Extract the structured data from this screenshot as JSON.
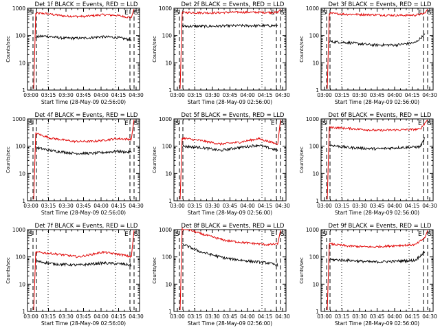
{
  "chart_data": [
    {
      "title": "Det 1f BLACK = Events, RED = LLD"
    },
    {
      "title": "Det 2f BLACK = Events, RED = LLD"
    },
    {
      "title": "Det 3f BLACK = Events, RED = LLD"
    },
    {
      "title": "Det 4f BLACK = Events, RED = LLD"
    },
    {
      "title": "Det 5f BLACK = Events, RED = LLD"
    },
    {
      "title": "Det 6f BLACK = Events, RED = LLD"
    },
    {
      "title": "Det 7f BLACK = Events, RED = LLD"
    },
    {
      "title": "Det 8f BLACK = Events, RED = LLD"
    },
    {
      "title": "Det 9f BLACK = Events, RED = LLD"
    }
  ],
  "common": {
    "type": "line",
    "yscale": "log",
    "ylim": [
      1,
      1000
    ],
    "ylabel": "Counts/sec",
    "xlabel": "Start Time (28-May-09 02:56:00)",
    "xticks": [
      "03:00",
      "03:15",
      "03:30",
      "03:45",
      "04:00",
      "04:15",
      "04:30"
    ],
    "yticks": [
      "1",
      "10",
      "100",
      "1000"
    ],
    "markers": {
      "start": "S",
      "end": "E"
    },
    "colors": {
      "events": "#000000",
      "lld": "#e00000"
    }
  },
  "profiles": [
    {
      "events": [
        [
          0,
          90
        ],
        [
          0.1,
          95
        ],
        [
          0.3,
          80
        ],
        [
          0.5,
          80
        ],
        [
          0.7,
          90
        ],
        [
          0.85,
          85
        ],
        [
          1,
          70
        ]
      ],
      "lld": [
        [
          0,
          650
        ],
        [
          0.1,
          640
        ],
        [
          0.3,
          520
        ],
        [
          0.5,
          500
        ],
        [
          0.7,
          580
        ],
        [
          0.85,
          550
        ],
        [
          1,
          450
        ]
      ],
      "rise": true
    },
    {
      "events": [
        [
          0,
          220
        ],
        [
          0.3,
          220
        ],
        [
          0.6,
          230
        ],
        [
          1,
          230
        ]
      ],
      "lld": [
        [
          0,
          700
        ],
        [
          0.3,
          680
        ],
        [
          0.6,
          720
        ],
        [
          1,
          700
        ]
      ],
      "rise": true
    },
    {
      "events": [
        [
          0,
          60
        ],
        [
          0.2,
          55
        ],
        [
          0.45,
          45
        ],
        [
          0.7,
          45
        ],
        [
          0.9,
          55
        ],
        [
          1,
          110
        ]
      ],
      "lld": [
        [
          0,
          650
        ],
        [
          0.2,
          600
        ],
        [
          0.45,
          580
        ],
        [
          0.7,
          550
        ],
        [
          0.9,
          560
        ],
        [
          1,
          650
        ]
      ],
      "rise": true
    },
    {
      "events": [
        [
          0,
          90
        ],
        [
          0.15,
          70
        ],
        [
          0.4,
          55
        ],
        [
          0.6,
          55
        ],
        [
          0.85,
          65
        ],
        [
          1,
          60
        ]
      ],
      "lld": [
        [
          0,
          300
        ],
        [
          0.15,
          200
        ],
        [
          0.4,
          150
        ],
        [
          0.6,
          150
        ],
        [
          0.85,
          190
        ],
        [
          1,
          180
        ]
      ],
      "rise": true
    },
    {
      "events": [
        [
          0,
          100
        ],
        [
          0.2,
          90
        ],
        [
          0.4,
          70
        ],
        [
          0.6,
          90
        ],
        [
          0.8,
          110
        ],
        [
          1,
          70
        ]
      ],
      "lld": [
        [
          0,
          200
        ],
        [
          0.2,
          160
        ],
        [
          0.4,
          120
        ],
        [
          0.6,
          140
        ],
        [
          0.8,
          190
        ],
        [
          1,
          120
        ]
      ],
      "rise": true
    },
    {
      "events": [
        [
          0,
          110
        ],
        [
          0.2,
          90
        ],
        [
          0.5,
          80
        ],
        [
          0.75,
          90
        ],
        [
          0.95,
          95
        ],
        [
          1,
          200
        ]
      ],
      "lld": [
        [
          0,
          500
        ],
        [
          0.2,
          450
        ],
        [
          0.5,
          380
        ],
        [
          0.75,
          400
        ],
        [
          0.95,
          420
        ],
        [
          1,
          700
        ]
      ],
      "rise": true
    },
    {
      "events": [
        [
          0,
          70
        ],
        [
          0.2,
          55
        ],
        [
          0.45,
          50
        ],
        [
          0.7,
          60
        ],
        [
          0.9,
          55
        ],
        [
          1,
          50
        ]
      ],
      "lld": [
        [
          0,
          150
        ],
        [
          0.2,
          130
        ],
        [
          0.45,
          100
        ],
        [
          0.7,
          150
        ],
        [
          0.9,
          120
        ],
        [
          1,
          100
        ]
      ],
      "rise": true
    },
    {
      "events": [
        [
          0,
          300
        ],
        [
          0.2,
          150
        ],
        [
          0.45,
          90
        ],
        [
          0.7,
          70
        ],
        [
          0.9,
          60
        ],
        [
          1,
          50
        ]
      ],
      "lld": [
        [
          0,
          1200
        ],
        [
          0.2,
          700
        ],
        [
          0.45,
          400
        ],
        [
          0.7,
          320
        ],
        [
          0.9,
          280
        ],
        [
          1,
          300
        ]
      ],
      "rise": true
    },
    {
      "events": [
        [
          0,
          80
        ],
        [
          0.2,
          75
        ],
        [
          0.45,
          65
        ],
        [
          0.7,
          70
        ],
        [
          0.9,
          75
        ],
        [
          1,
          160
        ]
      ],
      "lld": [
        [
          0,
          300
        ],
        [
          0.2,
          250
        ],
        [
          0.45,
          230
        ],
        [
          0.7,
          260
        ],
        [
          0.9,
          280
        ],
        [
          1,
          500
        ]
      ],
      "rise": true
    }
  ]
}
